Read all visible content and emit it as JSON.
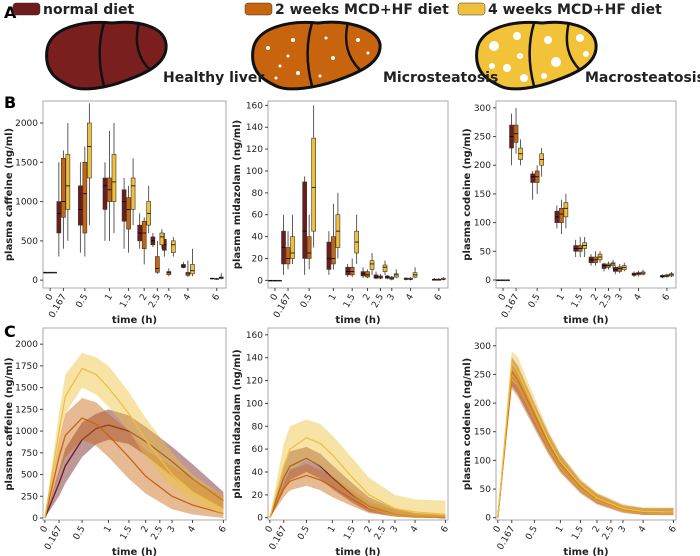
{
  "panels": [
    "A",
    "B",
    "C"
  ],
  "legend": [
    {
      "name": "normal diet",
      "color": "#6e1b1b"
    },
    {
      "name": "2 weeks  MCD+HF diet",
      "color": "#c8660f"
    },
    {
      "name": "4 weeks MCD+HF diet",
      "color": "#f0c03c"
    }
  ],
  "liver_labels": [
    "Healthy liver",
    "Microsteatosis",
    "Macrosteatosis"
  ],
  "chart_data": [
    {
      "type": "box",
      "y_label": "plasma caffeine (ng/ml)",
      "x_label": "time (h)",
      "xscale": "log1p",
      "xlim": [
        -0.08,
        6.8
      ],
      "ylim": [
        -100,
        2280
      ],
      "yticks": [
        0,
        500,
        1000,
        1500,
        2000
      ],
      "x": [
        0,
        0.167,
        0.5,
        1,
        1.5,
        2,
        2.5,
        3,
        4,
        6
      ],
      "xticks": [
        0,
        0.167,
        0.5,
        1,
        1.5,
        2,
        2.5,
        3,
        4,
        6
      ],
      "series": [
        {
          "color": "#6e1b1b",
          "min": [
            100,
            300,
            350,
            500,
            400,
            400,
            420,
            300,
            150,
            10
          ],
          "q1": [
            100,
            600,
            700,
            900,
            750,
            500,
            450,
            380,
            160,
            15
          ],
          "median": [
            100,
            850,
            900,
            1200,
            1000,
            600,
            500,
            450,
            180,
            20
          ],
          "q3": [
            100,
            1000,
            1200,
            1300,
            1150,
            700,
            550,
            520,
            200,
            25
          ],
          "max": [
            100,
            1500,
            1500,
            1500,
            1300,
            850,
            600,
            600,
            230,
            30
          ]
        },
        {
          "color": "#c8660f",
          "min": [
            100,
            400,
            300,
            500,
            350,
            200,
            80,
            50,
            40,
            5
          ],
          "q1": [
            100,
            800,
            600,
            1000,
            650,
            400,
            100,
            70,
            60,
            10
          ],
          "median": [
            100,
            1000,
            1100,
            1150,
            900,
            600,
            150,
            100,
            80,
            15
          ],
          "q3": [
            100,
            1550,
            1500,
            1300,
            1050,
            750,
            300,
            110,
            100,
            20
          ],
          "max": [
            100,
            1650,
            1700,
            1900,
            1200,
            800,
            500,
            150,
            250,
            30
          ]
        },
        {
          "color": "#f0c03c",
          "min": [
            100,
            500,
            700,
            600,
            700,
            600,
            400,
            300,
            50,
            10
          ],
          "q1": [
            100,
            900,
            1300,
            1000,
            900,
            700,
            450,
            350,
            80,
            20
          ],
          "median": [
            100,
            1200,
            1700,
            1250,
            1200,
            850,
            550,
            450,
            120,
            30
          ],
          "q3": [
            100,
            1600,
            2000,
            1600,
            1300,
            1000,
            600,
            500,
            200,
            40
          ],
          "max": [
            100,
            2000,
            2250,
            2000,
            1550,
            1200,
            650,
            550,
            400,
            90
          ]
        }
      ]
    },
    {
      "type": "box",
      "y_label": "plasma midazolam (ng/ml)",
      "x_label": "time (h)",
      "xscale": "log1p",
      "xlim": [
        -0.08,
        6.8
      ],
      "ylim": [
        -7,
        164
      ],
      "yticks": [
        0,
        20,
        40,
        60,
        80,
        100,
        120,
        140,
        160
      ],
      "x": [
        0,
        0.167,
        0.5,
        1,
        1.5,
        2,
        2.5,
        3,
        4,
        6
      ],
      "xticks": [
        0,
        0.167,
        0.5,
        1,
        1.5,
        2,
        2.5,
        3,
        4,
        6
      ],
      "series": [
        {
          "color": "#6e1b1b",
          "min": [
            0,
            5,
            5,
            5,
            3,
            2,
            1,
            1,
            0,
            0
          ],
          "q1": [
            0,
            15,
            20,
            10,
            5,
            4,
            2,
            2,
            1,
            0
          ],
          "median": [
            0,
            30,
            45,
            20,
            8,
            6,
            3,
            3,
            1,
            1
          ],
          "q3": [
            0,
            45,
            90,
            35,
            12,
            8,
            5,
            4,
            2,
            1
          ],
          "max": [
            0,
            60,
            95,
            45,
            15,
            12,
            8,
            5,
            3,
            2
          ]
        },
        {
          "color": "#c8660f",
          "min": [
            0,
            10,
            10,
            10,
            3,
            2,
            1,
            0,
            0,
            0
          ],
          "q1": [
            0,
            15,
            20,
            15,
            5,
            3,
            2,
            1,
            1,
            0
          ],
          "median": [
            0,
            20,
            25,
            20,
            8,
            5,
            3,
            2,
            1,
            1
          ],
          "q3": [
            0,
            30,
            40,
            40,
            12,
            8,
            4,
            3,
            2,
            1
          ],
          "max": [
            0,
            45,
            60,
            70,
            20,
            10,
            6,
            4,
            3,
            2
          ]
        },
        {
          "color": "#f0c03c",
          "min": [
            0,
            15,
            30,
            20,
            15,
            5,
            5,
            2,
            2,
            0
          ],
          "q1": [
            0,
            20,
            45,
            30,
            25,
            10,
            8,
            3,
            3,
            1
          ],
          "median": [
            0,
            25,
            85,
            45,
            35,
            15,
            12,
            5,
            5,
            1
          ],
          "q3": [
            0,
            40,
            130,
            60,
            45,
            18,
            14,
            6,
            7,
            2
          ],
          "max": [
            0,
            60,
            160,
            80,
            60,
            25,
            18,
            10,
            12,
            3
          ]
        }
      ]
    },
    {
      "type": "box",
      "y_label": "plasma codeine (ng/ml)",
      "x_label": "time (h)",
      "xscale": "log1p",
      "xlim": [
        -0.08,
        6.8
      ],
      "ylim": [
        -14,
        312
      ],
      "yticks": [
        0,
        50,
        100,
        150,
        200,
        250,
        300
      ],
      "x": [
        0,
        0.167,
        0.5,
        1,
        1.5,
        2,
        2.5,
        3,
        4,
        6
      ],
      "xticks": [
        0,
        0.167,
        0.5,
        1,
        1.5,
        2,
        2.5,
        3,
        4,
        6
      ],
      "series": [
        {
          "color": "#6e1b1b",
          "min": [
            0,
            200,
            140,
            90,
            40,
            25,
            15,
            10,
            5,
            3
          ],
          "q1": [
            0,
            230,
            170,
            100,
            50,
            30,
            20,
            15,
            8,
            5
          ],
          "median": [
            0,
            250,
            180,
            110,
            55,
            35,
            25,
            18,
            10,
            6
          ],
          "q3": [
            0,
            270,
            185,
            120,
            60,
            40,
            28,
            22,
            12,
            8
          ],
          "max": [
            0,
            290,
            190,
            130,
            70,
            45,
            30,
            25,
            15,
            10
          ]
        },
        {
          "color": "#c8660f",
          "min": [
            0,
            220,
            150,
            80,
            40,
            25,
            18,
            12,
            6,
            4
          ],
          "q1": [
            0,
            240,
            170,
            100,
            50,
            30,
            22,
            15,
            9,
            6
          ],
          "median": [
            0,
            255,
            180,
            115,
            55,
            35,
            25,
            20,
            11,
            7
          ],
          "q3": [
            0,
            270,
            190,
            125,
            60,
            40,
            28,
            23,
            13,
            9
          ],
          "max": [
            0,
            300,
            200,
            140,
            75,
            50,
            32,
            28,
            16,
            11
          ]
        },
        {
          "color": "#f0c03c",
          "min": [
            0,
            200,
            180,
            90,
            40,
            30,
            20,
            15,
            8,
            5
          ],
          "q1": [
            0,
            210,
            200,
            110,
            55,
            35,
            25,
            18,
            10,
            7
          ],
          "median": [
            0,
            220,
            210,
            125,
            60,
            40,
            28,
            22,
            12,
            9
          ],
          "q3": [
            0,
            230,
            220,
            135,
            65,
            45,
            30,
            25,
            14,
            11
          ],
          "max": [
            0,
            245,
            230,
            150,
            75,
            50,
            35,
            30,
            18,
            14
          ]
        }
      ]
    },
    {
      "type": "line",
      "y_label": "plasma caffeine (ng/ml)",
      "x_label": "time (h)",
      "xscale": "log1p",
      "xlim": [
        -0.02,
        6.2
      ],
      "ylim": [
        -23,
        2186
      ],
      "yticks": [
        0,
        250,
        500,
        750,
        1000,
        1250,
        1500,
        1750,
        2000
      ],
      "x": [
        0,
        0.167,
        0.25,
        0.5,
        0.75,
        1,
        1.5,
        2,
        3,
        4,
        6
      ],
      "xticks": [
        0,
        0.167,
        0.5,
        1,
        1.5,
        2,
        2.5,
        3,
        4,
        6
      ],
      "series": [
        {
          "color": "#6e1b1b",
          "values": [
            0,
            400,
            600,
            900,
            1030,
            1070,
            1000,
            880,
            650,
            450,
            200
          ],
          "lower": [
            0,
            250,
            400,
            700,
            850,
            900,
            850,
            720,
            480,
            300,
            100
          ],
          "upper": [
            0,
            550,
            800,
            1100,
            1200,
            1250,
            1180,
            1050,
            820,
            620,
            300
          ]
        },
        {
          "color": "#c8660f",
          "values": [
            0,
            700,
            950,
            1150,
            1080,
            950,
            700,
            480,
            250,
            150,
            50
          ],
          "lower": [
            0,
            500,
            700,
            900,
            830,
            700,
            450,
            280,
            100,
            40,
            0
          ],
          "upper": [
            0,
            900,
            1200,
            1380,
            1330,
            1200,
            1000,
            780,
            600,
            450,
            250
          ]
        },
        {
          "color": "#f0c03c",
          "values": [
            0,
            1000,
            1400,
            1720,
            1650,
            1500,
            1200,
            900,
            500,
            300,
            100
          ],
          "lower": [
            0,
            800,
            1200,
            1500,
            1420,
            1280,
            1000,
            700,
            350,
            180,
            40
          ],
          "upper": [
            0,
            1200,
            1650,
            1900,
            1850,
            1750,
            1450,
            1150,
            750,
            500,
            250
          ]
        }
      ]
    },
    {
      "type": "line",
      "y_label": "plasma midazolam (ng/ml)",
      "x_label": "time (h)",
      "xscale": "log1p",
      "xlim": [
        -0.02,
        6.2
      ],
      "ylim": [
        -2,
        166
      ],
      "yticks": [
        0,
        20,
        40,
        60,
        80,
        100,
        120,
        140,
        160
      ],
      "x": [
        0,
        0.167,
        0.25,
        0.5,
        0.75,
        1,
        1.5,
        2,
        3,
        4,
        6
      ],
      "xticks": [
        0,
        0.167,
        0.5,
        1,
        1.5,
        2,
        2.5,
        3,
        4,
        6
      ],
      "series": [
        {
          "color": "#6e1b1b",
          "values": [
            0,
            35,
            45,
            52,
            45,
            35,
            20,
            10,
            3,
            1,
            0
          ],
          "lower": [
            0,
            25,
            33,
            40,
            34,
            25,
            13,
            5,
            1,
            0,
            0
          ],
          "upper": [
            0,
            45,
            58,
            62,
            56,
            46,
            30,
            18,
            8,
            4,
            2
          ]
        },
        {
          "color": "#c8660f",
          "values": [
            0,
            25,
            32,
            37,
            33,
            27,
            16,
            8,
            3,
            1,
            0
          ],
          "lower": [
            0,
            18,
            24,
            28,
            24,
            18,
            10,
            4,
            1,
            0,
            0
          ],
          "upper": [
            0,
            33,
            42,
            47,
            42,
            36,
            24,
            14,
            7,
            4,
            3
          ]
        },
        {
          "color": "#f0c03c",
          "values": [
            0,
            45,
            60,
            70,
            65,
            55,
            35,
            20,
            8,
            5,
            3
          ],
          "lower": [
            0,
            30,
            42,
            50,
            45,
            36,
            20,
            8,
            1,
            0,
            0
          ],
          "upper": [
            0,
            65,
            80,
            86,
            82,
            72,
            52,
            35,
            20,
            16,
            15
          ]
        }
      ]
    },
    {
      "type": "line",
      "y_label": "plasma codeine (ng/ml)",
      "x_label": "time (h)",
      "xscale": "log1p",
      "xlim": [
        -0.02,
        6.2
      ],
      "ylim": [
        -4,
        331
      ],
      "yticks": [
        0,
        50,
        100,
        150,
        200,
        250,
        300
      ],
      "x": [
        0,
        0.167,
        0.25,
        0.5,
        0.75,
        1,
        1.5,
        2,
        3,
        4,
        6
      ],
      "xticks": [
        0,
        0.167,
        0.5,
        1,
        1.5,
        2,
        2.5,
        3,
        4,
        6
      ],
      "series": [
        {
          "color": "#6e1b1b",
          "values": [
            0,
            255,
            240,
            180,
            130,
            95,
            55,
            33,
            15,
            10,
            10
          ],
          "lower": [
            0,
            230,
            215,
            160,
            115,
            82,
            45,
            25,
            10,
            5,
            5
          ],
          "upper": [
            0,
            280,
            265,
            200,
            148,
            110,
            65,
            42,
            22,
            17,
            17
          ]
        },
        {
          "color": "#c8660f",
          "values": [
            0,
            245,
            235,
            175,
            125,
            90,
            52,
            31,
            14,
            10,
            9
          ],
          "lower": [
            0,
            225,
            210,
            155,
            110,
            78,
            42,
            23,
            8,
            5,
            4
          ],
          "upper": [
            0,
            270,
            260,
            195,
            142,
            105,
            62,
            40,
            20,
            15,
            15
          ]
        },
        {
          "color": "#f0c03c",
          "values": [
            0,
            270,
            255,
            190,
            135,
            98,
            57,
            34,
            16,
            11,
            10
          ],
          "lower": [
            0,
            240,
            228,
            170,
            120,
            85,
            47,
            27,
            10,
            6,
            5
          ],
          "upper": [
            0,
            290,
            280,
            210,
            152,
            112,
            68,
            44,
            24,
            18,
            18
          ]
        }
      ]
    }
  ]
}
